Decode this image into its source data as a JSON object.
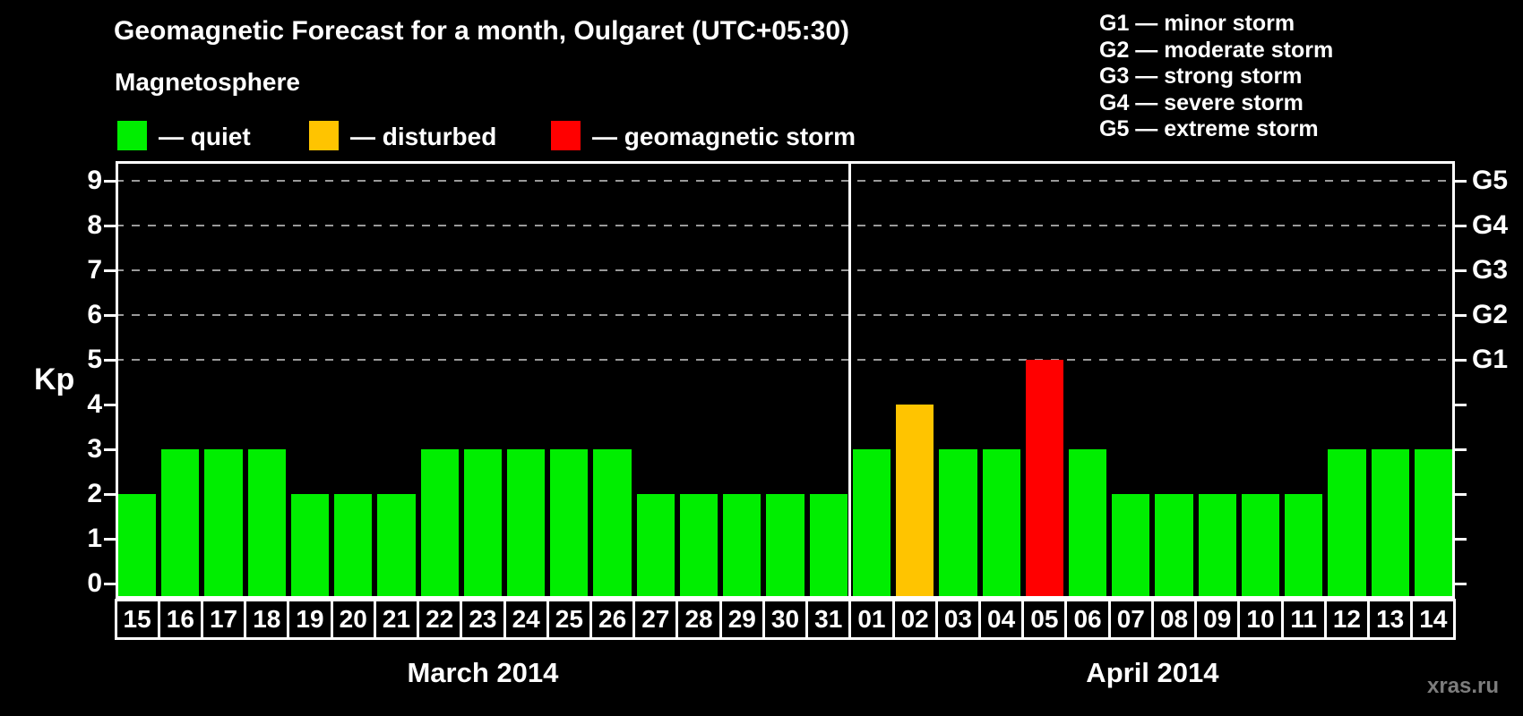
{
  "title": "Geomagnetic Forecast for a month, Oulgaret (UTC+05:30)",
  "magnetosphere_legend": {
    "heading": "Magnetosphere",
    "items": [
      {
        "name": "quiet",
        "label": "— quiet",
        "color": "#00ee00"
      },
      {
        "name": "disturbed",
        "label": "— disturbed",
        "color": "#ffc400"
      },
      {
        "name": "geomagnetic-storm",
        "label": "— geomagnetic storm",
        "color": "#ff0000"
      }
    ]
  },
  "g_scale_legend": [
    "G1 — minor storm",
    "G2 — moderate storm",
    "G3 — strong storm",
    "G4 — severe storm",
    "G5 — extreme storm"
  ],
  "watermark": "xras.ru",
  "chart_data": {
    "type": "bar",
    "title": "Geomagnetic Forecast for a month, Oulgaret (UTC+05:30)",
    "ylabel": "Kp",
    "ylim": [
      0,
      9
    ],
    "yticks": [
      0,
      1,
      2,
      3,
      4,
      5,
      6,
      7,
      8,
      9
    ],
    "gridlines_kp": [
      5,
      6,
      7,
      8,
      9
    ],
    "grid": "dashed horizontal at G-storm levels only",
    "legend_position": "top",
    "status_colors": {
      "quiet": "#00ee00",
      "disturbed": "#ffc400",
      "storm": "#ff0000"
    },
    "right_axis": [
      {
        "kp": 5,
        "label": "G1"
      },
      {
        "kp": 6,
        "label": "G2"
      },
      {
        "kp": 7,
        "label": "G3"
      },
      {
        "kp": 8,
        "label": "G4"
      },
      {
        "kp": 9,
        "label": "G5"
      }
    ],
    "months": [
      {
        "label": "March 2014",
        "days": [
          {
            "date": "15",
            "kp": 2,
            "status": "quiet"
          },
          {
            "date": "16",
            "kp": 3,
            "status": "quiet"
          },
          {
            "date": "17",
            "kp": 3,
            "status": "quiet"
          },
          {
            "date": "18",
            "kp": 3,
            "status": "quiet"
          },
          {
            "date": "19",
            "kp": 2,
            "status": "quiet"
          },
          {
            "date": "20",
            "kp": 2,
            "status": "quiet"
          },
          {
            "date": "21",
            "kp": 2,
            "status": "quiet"
          },
          {
            "date": "22",
            "kp": 3,
            "status": "quiet"
          },
          {
            "date": "23",
            "kp": 3,
            "status": "quiet"
          },
          {
            "date": "24",
            "kp": 3,
            "status": "quiet"
          },
          {
            "date": "25",
            "kp": 3,
            "status": "quiet"
          },
          {
            "date": "26",
            "kp": 3,
            "status": "quiet"
          },
          {
            "date": "27",
            "kp": 2,
            "status": "quiet"
          },
          {
            "date": "28",
            "kp": 2,
            "status": "quiet"
          },
          {
            "date": "29",
            "kp": 2,
            "status": "quiet"
          },
          {
            "date": "30",
            "kp": 2,
            "status": "quiet"
          },
          {
            "date": "31",
            "kp": 2,
            "status": "quiet"
          }
        ]
      },
      {
        "label": "April 2014",
        "days": [
          {
            "date": "01",
            "kp": 3,
            "status": "quiet"
          },
          {
            "date": "02",
            "kp": 4,
            "status": "disturbed"
          },
          {
            "date": "03",
            "kp": 3,
            "status": "quiet"
          },
          {
            "date": "04",
            "kp": 3,
            "status": "quiet"
          },
          {
            "date": "05",
            "kp": 5,
            "status": "storm"
          },
          {
            "date": "06",
            "kp": 3,
            "status": "quiet"
          },
          {
            "date": "07",
            "kp": 2,
            "status": "quiet"
          },
          {
            "date": "08",
            "kp": 2,
            "status": "quiet"
          },
          {
            "date": "09",
            "kp": 2,
            "status": "quiet"
          },
          {
            "date": "10",
            "kp": 2,
            "status": "quiet"
          },
          {
            "date": "11",
            "kp": 2,
            "status": "quiet"
          },
          {
            "date": "12",
            "kp": 3,
            "status": "quiet"
          },
          {
            "date": "13",
            "kp": 3,
            "status": "quiet"
          },
          {
            "date": "14",
            "kp": 3,
            "status": "quiet"
          }
        ]
      }
    ]
  }
}
